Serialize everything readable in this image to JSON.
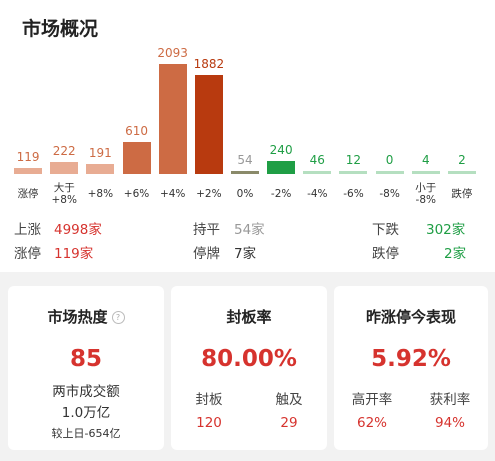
{
  "title": "市场概况",
  "colors": {
    "up_dark": "#b83a0f",
    "up": "#cd6b44",
    "up_light": "#e8ac93",
    "flat": "#8a8a6a",
    "down_dark": "#1f9e45",
    "down": "#6cbf84",
    "down_light": "#b5dfc0"
  },
  "chart_data": {
    "type": "bar",
    "categories": [
      "涨停",
      "大于\n+8%",
      "+8%",
      "+6%",
      "+4%",
      "+2%",
      "0%",
      "-2%",
      "-4%",
      "-6%",
      "-8%",
      "小于\n-8%",
      "跌停"
    ],
    "values": [
      119,
      222,
      191,
      610,
      2093,
      1882,
      54,
      240,
      46,
      12,
      0,
      4,
      2
    ],
    "value_labels": [
      "119",
      "222",
      "191",
      "610",
      "2093",
      "1882",
      "54",
      "240",
      "46",
      "12",
      "0",
      "4",
      "2"
    ],
    "title": "",
    "xlabel": "",
    "ylabel": "",
    "ylim": [
      0,
      2093
    ],
    "grid": false,
    "legend": "none"
  },
  "stats": {
    "up_label": "上涨",
    "up_value": "4998家",
    "flat_label": "持平",
    "flat_value": "54家",
    "down_label": "下跌",
    "down_value": "302家",
    "limit_up_label": "涨停",
    "limit_up_value": "119家",
    "suspended_label": "停牌",
    "suspended_value": "7家",
    "limit_down_label": "跌停",
    "limit_down_value": "2家"
  },
  "cards": {
    "heat": {
      "title": "市场热度",
      "help": "?",
      "value": "85",
      "turnover_label": "两市成交额",
      "turnover_value": "1.0万亿",
      "change": "较上日-654亿"
    },
    "seal": {
      "title": "封板率",
      "value": "80.00%",
      "left_label": "封板",
      "left_value": "120",
      "right_label": "触及",
      "right_value": "29"
    },
    "yesterday": {
      "title": "昨涨停今表现",
      "value": "5.92%",
      "left_label": "高开率",
      "left_value": "62%",
      "right_label": "获利率",
      "right_value": "94%"
    }
  }
}
